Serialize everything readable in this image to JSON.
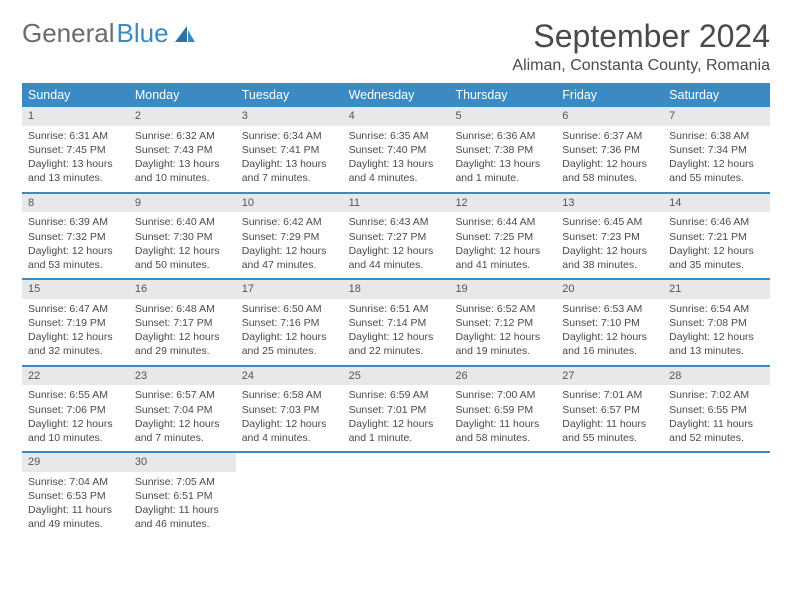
{
  "logo": {
    "text1": "General",
    "text2": "Blue"
  },
  "title": "September 2024",
  "location": "Aliman, Constanta County, Romania",
  "colors": {
    "header_bg": "#3b8ac4",
    "daynum_bg": "#e8e8e8",
    "text": "#4a4a4a",
    "logo_gray": "#6b6b6b",
    "logo_blue": "#3b8ac4",
    "divider": "#3b8ac4"
  },
  "daynames": [
    "Sunday",
    "Monday",
    "Tuesday",
    "Wednesday",
    "Thursday",
    "Friday",
    "Saturday"
  ],
  "weeks": [
    [
      {
        "n": "1",
        "sr": "Sunrise: 6:31 AM",
        "ss": "Sunset: 7:45 PM",
        "d1": "Daylight: 13 hours",
        "d2": "and 13 minutes."
      },
      {
        "n": "2",
        "sr": "Sunrise: 6:32 AM",
        "ss": "Sunset: 7:43 PM",
        "d1": "Daylight: 13 hours",
        "d2": "and 10 minutes."
      },
      {
        "n": "3",
        "sr": "Sunrise: 6:34 AM",
        "ss": "Sunset: 7:41 PM",
        "d1": "Daylight: 13 hours",
        "d2": "and 7 minutes."
      },
      {
        "n": "4",
        "sr": "Sunrise: 6:35 AM",
        "ss": "Sunset: 7:40 PM",
        "d1": "Daylight: 13 hours",
        "d2": "and 4 minutes."
      },
      {
        "n": "5",
        "sr": "Sunrise: 6:36 AM",
        "ss": "Sunset: 7:38 PM",
        "d1": "Daylight: 13 hours",
        "d2": "and 1 minute."
      },
      {
        "n": "6",
        "sr": "Sunrise: 6:37 AM",
        "ss": "Sunset: 7:36 PM",
        "d1": "Daylight: 12 hours",
        "d2": "and 58 minutes."
      },
      {
        "n": "7",
        "sr": "Sunrise: 6:38 AM",
        "ss": "Sunset: 7:34 PM",
        "d1": "Daylight: 12 hours",
        "d2": "and 55 minutes."
      }
    ],
    [
      {
        "n": "8",
        "sr": "Sunrise: 6:39 AM",
        "ss": "Sunset: 7:32 PM",
        "d1": "Daylight: 12 hours",
        "d2": "and 53 minutes."
      },
      {
        "n": "9",
        "sr": "Sunrise: 6:40 AM",
        "ss": "Sunset: 7:30 PM",
        "d1": "Daylight: 12 hours",
        "d2": "and 50 minutes."
      },
      {
        "n": "10",
        "sr": "Sunrise: 6:42 AM",
        "ss": "Sunset: 7:29 PM",
        "d1": "Daylight: 12 hours",
        "d2": "and 47 minutes."
      },
      {
        "n": "11",
        "sr": "Sunrise: 6:43 AM",
        "ss": "Sunset: 7:27 PM",
        "d1": "Daylight: 12 hours",
        "d2": "and 44 minutes."
      },
      {
        "n": "12",
        "sr": "Sunrise: 6:44 AM",
        "ss": "Sunset: 7:25 PM",
        "d1": "Daylight: 12 hours",
        "d2": "and 41 minutes."
      },
      {
        "n": "13",
        "sr": "Sunrise: 6:45 AM",
        "ss": "Sunset: 7:23 PM",
        "d1": "Daylight: 12 hours",
        "d2": "and 38 minutes."
      },
      {
        "n": "14",
        "sr": "Sunrise: 6:46 AM",
        "ss": "Sunset: 7:21 PM",
        "d1": "Daylight: 12 hours",
        "d2": "and 35 minutes."
      }
    ],
    [
      {
        "n": "15",
        "sr": "Sunrise: 6:47 AM",
        "ss": "Sunset: 7:19 PM",
        "d1": "Daylight: 12 hours",
        "d2": "and 32 minutes."
      },
      {
        "n": "16",
        "sr": "Sunrise: 6:48 AM",
        "ss": "Sunset: 7:17 PM",
        "d1": "Daylight: 12 hours",
        "d2": "and 29 minutes."
      },
      {
        "n": "17",
        "sr": "Sunrise: 6:50 AM",
        "ss": "Sunset: 7:16 PM",
        "d1": "Daylight: 12 hours",
        "d2": "and 25 minutes."
      },
      {
        "n": "18",
        "sr": "Sunrise: 6:51 AM",
        "ss": "Sunset: 7:14 PM",
        "d1": "Daylight: 12 hours",
        "d2": "and 22 minutes."
      },
      {
        "n": "19",
        "sr": "Sunrise: 6:52 AM",
        "ss": "Sunset: 7:12 PM",
        "d1": "Daylight: 12 hours",
        "d2": "and 19 minutes."
      },
      {
        "n": "20",
        "sr": "Sunrise: 6:53 AM",
        "ss": "Sunset: 7:10 PM",
        "d1": "Daylight: 12 hours",
        "d2": "and 16 minutes."
      },
      {
        "n": "21",
        "sr": "Sunrise: 6:54 AM",
        "ss": "Sunset: 7:08 PM",
        "d1": "Daylight: 12 hours",
        "d2": "and 13 minutes."
      }
    ],
    [
      {
        "n": "22",
        "sr": "Sunrise: 6:55 AM",
        "ss": "Sunset: 7:06 PM",
        "d1": "Daylight: 12 hours",
        "d2": "and 10 minutes."
      },
      {
        "n": "23",
        "sr": "Sunrise: 6:57 AM",
        "ss": "Sunset: 7:04 PM",
        "d1": "Daylight: 12 hours",
        "d2": "and 7 minutes."
      },
      {
        "n": "24",
        "sr": "Sunrise: 6:58 AM",
        "ss": "Sunset: 7:03 PM",
        "d1": "Daylight: 12 hours",
        "d2": "and 4 minutes."
      },
      {
        "n": "25",
        "sr": "Sunrise: 6:59 AM",
        "ss": "Sunset: 7:01 PM",
        "d1": "Daylight: 12 hours",
        "d2": "and 1 minute."
      },
      {
        "n": "26",
        "sr": "Sunrise: 7:00 AM",
        "ss": "Sunset: 6:59 PM",
        "d1": "Daylight: 11 hours",
        "d2": "and 58 minutes."
      },
      {
        "n": "27",
        "sr": "Sunrise: 7:01 AM",
        "ss": "Sunset: 6:57 PM",
        "d1": "Daylight: 11 hours",
        "d2": "and 55 minutes."
      },
      {
        "n": "28",
        "sr": "Sunrise: 7:02 AM",
        "ss": "Sunset: 6:55 PM",
        "d1": "Daylight: 11 hours",
        "d2": "and 52 minutes."
      }
    ],
    [
      {
        "n": "29",
        "sr": "Sunrise: 7:04 AM",
        "ss": "Sunset: 6:53 PM",
        "d1": "Daylight: 11 hours",
        "d2": "and 49 minutes."
      },
      {
        "n": "30",
        "sr": "Sunrise: 7:05 AM",
        "ss": "Sunset: 6:51 PM",
        "d1": "Daylight: 11 hours",
        "d2": "and 46 minutes."
      },
      {
        "empty": true
      },
      {
        "empty": true
      },
      {
        "empty": true
      },
      {
        "empty": true
      },
      {
        "empty": true
      }
    ]
  ]
}
